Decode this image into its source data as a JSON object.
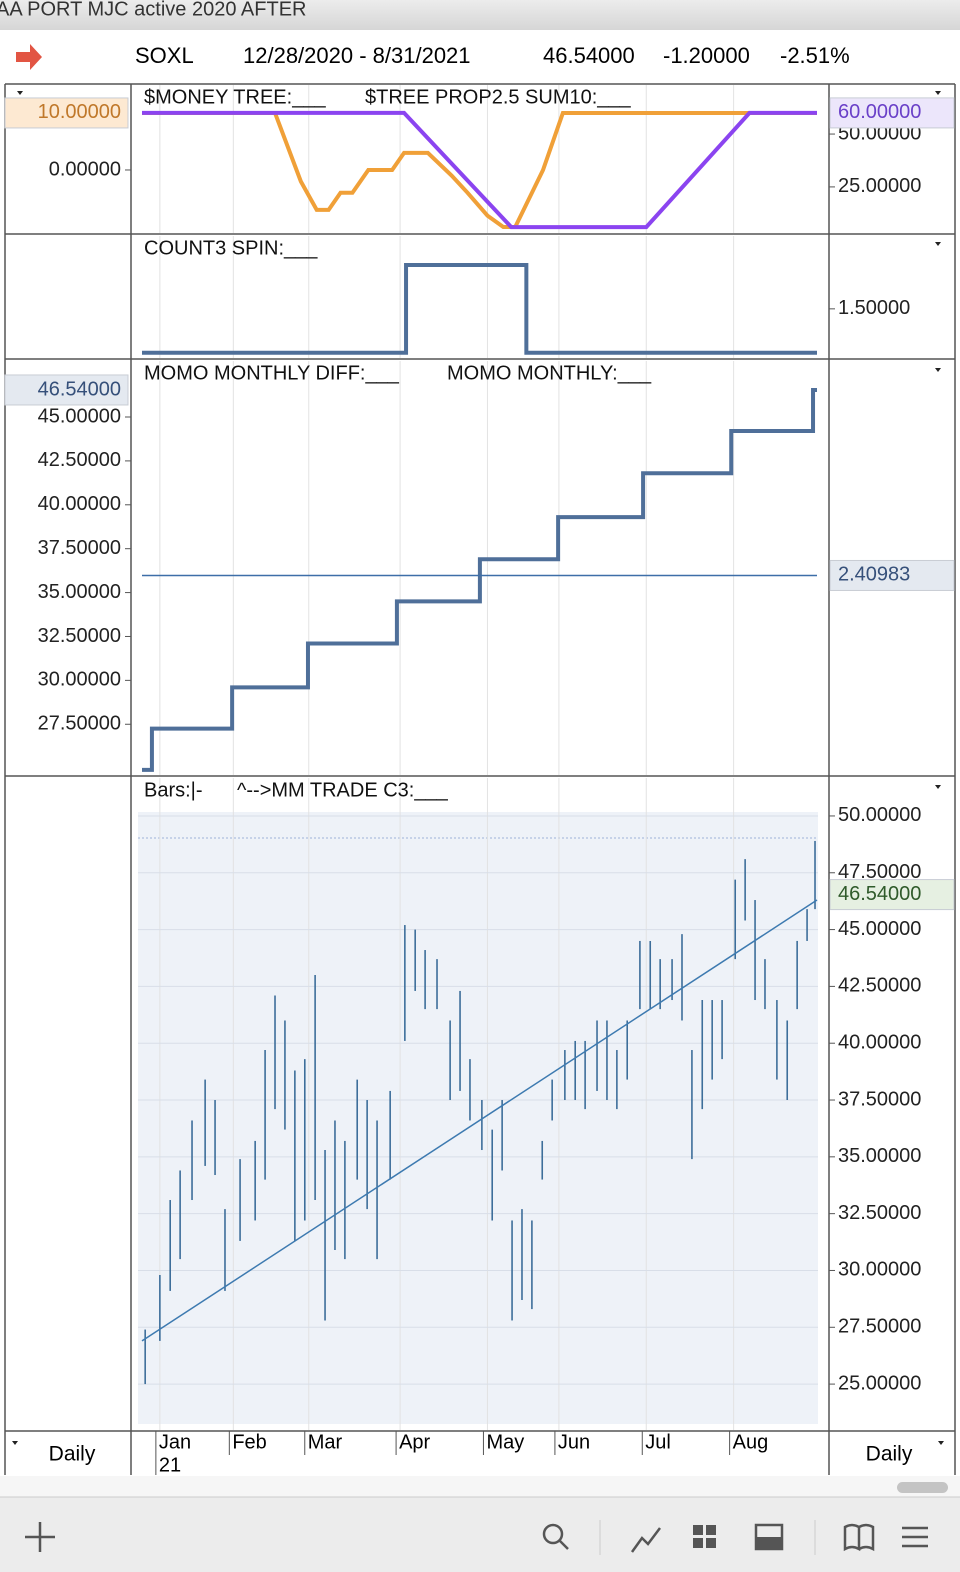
{
  "window_title": "AA PORT MJC active 2020 AFTER",
  "header": {
    "symbol": "SOXL",
    "range": "12/28/2020 - 8/31/2021",
    "last": "46.54000",
    "change": "-1.20000",
    "percent": "-2.51%"
  },
  "footer": {
    "left_period": "Daily",
    "right_period": "Daily",
    "year_label": "21"
  },
  "chart_data": [
    {
      "type": "line",
      "xlim": [
        0,
        170
      ],
      "ylim": [
        -11.05,
        14.9
      ],
      "yticks": [
        {
          "value": 0,
          "label": "0.00000"
        }
      ],
      "y2lim": [
        3.2,
        73.2
      ],
      "y2ticks": [
        {
          "value": 50,
          "label": "50.00000"
        },
        {
          "value": 25,
          "label": "25.00000"
        }
      ],
      "series": [
        {
          "name": "$MONEY TREE:___",
          "color": "#f0a038",
          "tag_color": "#fde9d2",
          "tag_text": "#c0782a",
          "last_label": "10.00000",
          "x": [
            0,
            33.5,
            40,
            44,
            47,
            50,
            53,
            57,
            63,
            66,
            72,
            78,
            82,
            87,
            91,
            94,
            101,
            106,
            170
          ],
          "values": [
            10,
            10,
            -2,
            -7,
            -7,
            -4,
            -4,
            0,
            0,
            3,
            3,
            -1,
            -4,
            -8,
            -10,
            -10,
            0,
            10,
            10
          ]
        },
        {
          "name": "$TREE PROP2.5 SUM10:___",
          "color": "#8b44f0",
          "axis": "y2",
          "tag_color": "#ece6fb",
          "tag_text": "#6a40c8",
          "last_label": "60.00000",
          "x": [
            0,
            66,
            93,
            127,
            153,
            170
          ],
          "values": [
            60,
            60,
            6,
            6,
            60,
            60
          ]
        }
      ]
    },
    {
      "type": "step",
      "xlim": [
        0,
        170
      ],
      "y2lim": [
        0.94,
        2.33
      ],
      "y2ticks": [
        {
          "value": 1.5,
          "label": "1.50000"
        }
      ],
      "series": [
        {
          "name": "COUNT3 SPIN:___",
          "color": "#4f6f99",
          "axis": "y2",
          "x": [
            0,
            66.5,
            96.8
          ],
          "values": [
            1,
            2,
            1
          ]
        }
      ]
    },
    {
      "type": "step",
      "xlim": [
        0,
        170
      ],
      "ylim": [
        24.61,
        48.19
      ],
      "yticks": [
        {
          "value": 45,
          "label": "45.00000"
        },
        {
          "value": 42.5,
          "label": "42.50000"
        },
        {
          "value": 40,
          "label": "40.00000"
        },
        {
          "value": 37.5,
          "label": "37.50000"
        },
        {
          "value": 35,
          "label": "35.00000"
        },
        {
          "value": 32.5,
          "label": "32.50000"
        },
        {
          "value": 30,
          "label": "30.00000"
        },
        {
          "value": 27.5,
          "label": "27.50000"
        }
      ],
      "y2lim": [
        0,
        5
      ],
      "series": [
        {
          "name": "MOMO MONTHLY DIFF:___",
          "color": "#4f6f99",
          "tag_color": "#e4e9f0",
          "tag_text": "#36507a",
          "last_label": "46.54000",
          "x": [
            0,
            2.5,
            22.7,
            41.8,
            64.2,
            85.1,
            104.8,
            126.2,
            148.4,
            169
          ],
          "values": [
            24.9,
            27.25,
            29.6,
            32.1,
            34.5,
            36.9,
            39.3,
            41.8,
            44.2,
            46.54
          ]
        },
        {
          "name": "MOMO MONTHLY:___",
          "color": "#3d6ea8",
          "type": "line",
          "axis": "y2",
          "tag_color": "#e4e9f0",
          "tag_text": "#36507a",
          "last_label": "2.40983",
          "x": [
            0,
            170
          ],
          "values": [
            2.40983,
            2.40983
          ]
        }
      ]
    },
    {
      "type": "hlbar",
      "xlim": [
        0,
        170
      ],
      "y2lim": [
        22.98,
        51.67
      ],
      "y2ticks": [
        {
          "value": 50,
          "label": "50.00000"
        },
        {
          "value": 47.5,
          "label": "47.50000"
        },
        {
          "value": 45,
          "label": "45.00000"
        },
        {
          "value": 42.5,
          "label": "42.50000"
        },
        {
          "value": 40,
          "label": "40.00000"
        },
        {
          "value": 37.5,
          "label": "37.50000"
        },
        {
          "value": 35,
          "label": "35.00000"
        },
        {
          "value": 32.5,
          "label": "32.50000"
        },
        {
          "value": 30,
          "label": "30.00000"
        },
        {
          "value": 27.5,
          "label": "27.50000"
        },
        {
          "value": 25,
          "label": "25.00000"
        }
      ],
      "grid": true,
      "xticks": [
        {
          "value": 4.5,
          "label": "Jan"
        },
        {
          "value": 23,
          "label": "Feb"
        },
        {
          "value": 42,
          "label": "Mar"
        },
        {
          "value": 65,
          "label": "Apr"
        },
        {
          "value": 87,
          "label": "May"
        },
        {
          "value": 105,
          "label": "Jun"
        },
        {
          "value": 127,
          "label": "Jul"
        },
        {
          "value": 149,
          "label": "Aug"
        }
      ],
      "series": [
        {
          "name": "Bars:|-",
          "color": "#3d6e9a",
          "axis": "y2",
          "tag_color": "#e6f0e2",
          "tag_text": "#2f5a2a",
          "last_label": "46.54000",
          "last_value": 46.54,
          "x": [
            0.8,
            4.5,
            7.1,
            9.6,
            12.6,
            15.9,
            18.4,
            20.9,
            24.7,
            28.5,
            31,
            33.5,
            36,
            38.5,
            41,
            43.6,
            46.1,
            48.6,
            51.1,
            54.2,
            56.7,
            59.2,
            62.5,
            66.2,
            68.8,
            71.3,
            74.3,
            77.6,
            80.1,
            82.6,
            85.6,
            88.2,
            90.7,
            93.2,
            95.7,
            98.2,
            100.8,
            103.3,
            106.5,
            109.1,
            111.6,
            114.6,
            117.1,
            119.6,
            122.2,
            125.4,
            128,
            130.5,
            133.5,
            136,
            138.5,
            141.1,
            143.6,
            146.1,
            149.4,
            151.9,
            154.4,
            156.9,
            159.9,
            162.5,
            165,
            167.5,
            169.5
          ],
          "high": [
            27.4,
            29.8,
            33.1,
            34.4,
            36.6,
            38.4,
            37.5,
            32.7,
            34.9,
            35.7,
            39.7,
            42.1,
            41.0,
            38.8,
            39.3,
            43.0,
            35.3,
            36.6,
            35.7,
            38.4,
            37.5,
            36.6,
            37.9,
            45.2,
            45.0,
            44.1,
            43.7,
            41.0,
            42.3,
            39.3,
            37.5,
            36.2,
            37.5,
            32.2,
            32.7,
            32.2,
            35.7,
            38.4,
            39.7,
            40.1,
            40.1,
            41.0,
            41.0,
            39.7,
            41.0,
            44.5,
            44.5,
            43.7,
            43.7,
            44.8,
            39.7,
            41.9,
            41.9,
            41.9,
            47.2,
            48.1,
            46.3,
            43.7,
            41.9,
            41.0,
            44.5,
            45.9,
            48.9
          ],
          "low": [
            25.0,
            26.9,
            29.1,
            30.5,
            33.1,
            34.6,
            34.2,
            29.1,
            31.3,
            32.2,
            34.0,
            37.1,
            36.2,
            31.3,
            32.2,
            33.1,
            27.8,
            30.9,
            30.5,
            34.0,
            32.7,
            30.5,
            34.0,
            40.1,
            42.3,
            41.5,
            41.5,
            37.5,
            37.9,
            36.6,
            35.3,
            32.2,
            34.4,
            27.8,
            28.7,
            28.3,
            34.0,
            36.6,
            37.5,
            37.5,
            37.1,
            37.9,
            37.5,
            37.1,
            38.4,
            41.5,
            41.5,
            41.5,
            41.9,
            41.0,
            34.9,
            37.1,
            38.4,
            39.3,
            43.7,
            45.4,
            41.9,
            41.5,
            38.4,
            37.5,
            41.5,
            44.5,
            45.9
          ]
        },
        {
          "name": "^-->MM TRADE C3:___",
          "color": "#3d7ab0",
          "type": "line",
          "axis": "y2",
          "x": [
            0,
            170
          ],
          "values": [
            26.9,
            46.3
          ]
        }
      ]
    }
  ]
}
